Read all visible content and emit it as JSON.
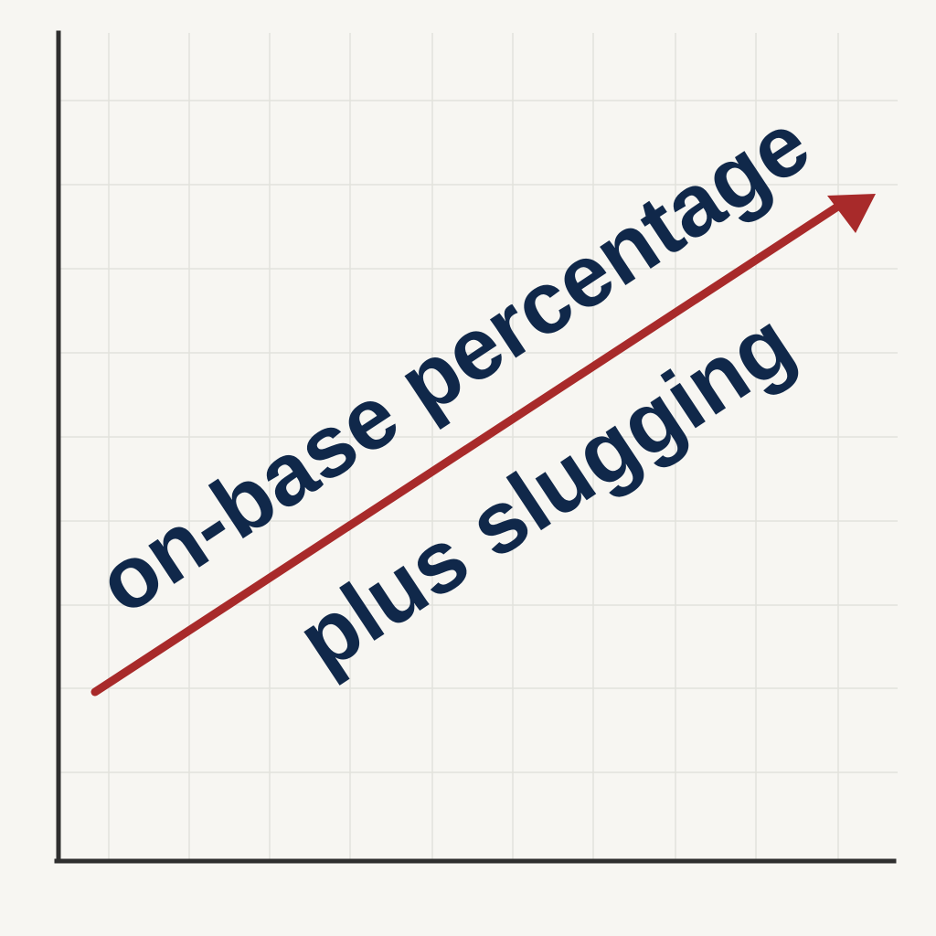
{
  "chart_data": {
    "type": "line",
    "grid": true,
    "trend": "increasing",
    "annotation_lines": [
      "on-base percentage",
      "plus slugging"
    ]
  },
  "colors": {
    "background": "#f7f6f2",
    "grid": "#e2e2dc",
    "axis": "#2f2f2f",
    "trend_arrow": "#a82a2a",
    "text": "#10284a"
  }
}
